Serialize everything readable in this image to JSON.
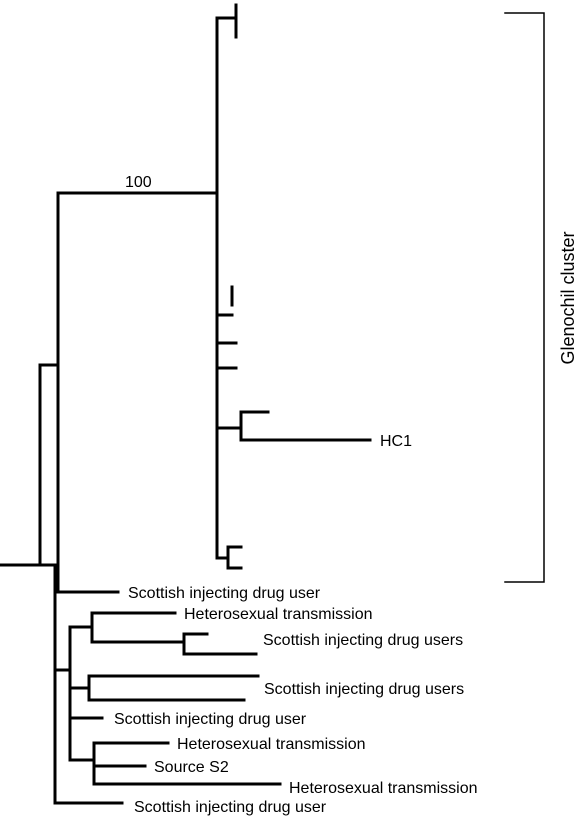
{
  "tree": {
    "bootstrap": "100",
    "cluster_label": "Glenochil cluster",
    "leaves": {
      "hc1": "HC1",
      "idu_1": "Scottish injecting drug user",
      "het_1": "Heterosexual transmission",
      "idus_1": "Scottish injecting drug users",
      "idus_2": "Scottish injecting drug users",
      "idu_2": "Scottish injecting drug user",
      "het_2": "Heterosexual transmission",
      "source_s2": "Source S2",
      "het_3": "Heterosexual transmission",
      "idu_3": "Scottish injecting drug user"
    }
  }
}
